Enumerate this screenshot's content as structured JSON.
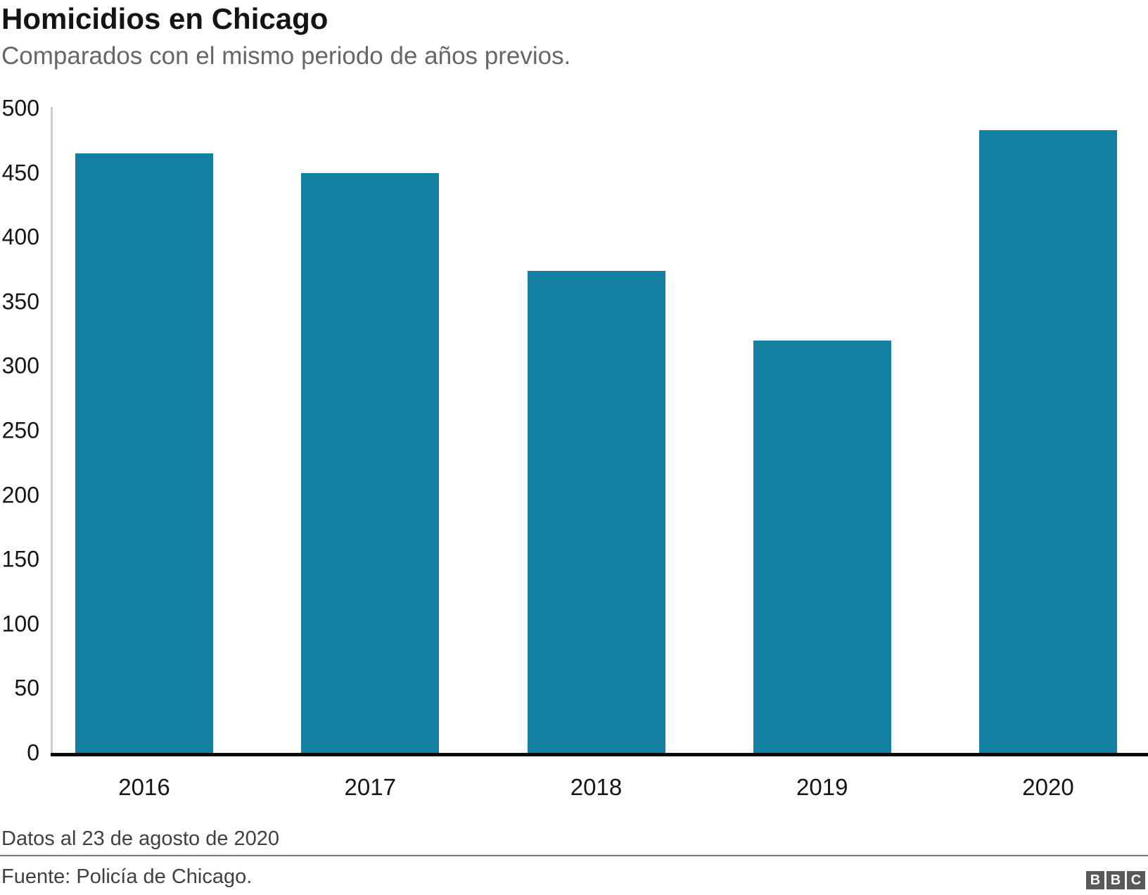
{
  "header": {
    "title": "Homicidios en Chicago",
    "subtitle": "Comparados con el mismo periodo de años previos."
  },
  "chart_data": {
    "type": "bar",
    "title": "Homicidios en Chicago",
    "subtitle": "Comparados con el mismo periodo de años previos.",
    "categories": [
      "2016",
      "2017",
      "2018",
      "2019",
      "2020"
    ],
    "values": [
      465,
      450,
      374,
      320,
      483
    ],
    "xlabel": "",
    "ylabel": "",
    "ylim": [
      0,
      500
    ],
    "yticks": [
      0,
      50,
      100,
      150,
      200,
      250,
      300,
      350,
      400,
      450,
      500
    ],
    "grid": false,
    "legend": false,
    "bar_color": "#1380A1",
    "y_axis_line_color": "#cccccc",
    "baseline_color": "#0a0a0a",
    "tick_label_color": "#141414"
  },
  "footer": {
    "note": "Datos al 23 de agosto de 2020",
    "source": "Fuente: Policía de Chicago.",
    "logo_letters": [
      "B",
      "B",
      "C"
    ]
  }
}
